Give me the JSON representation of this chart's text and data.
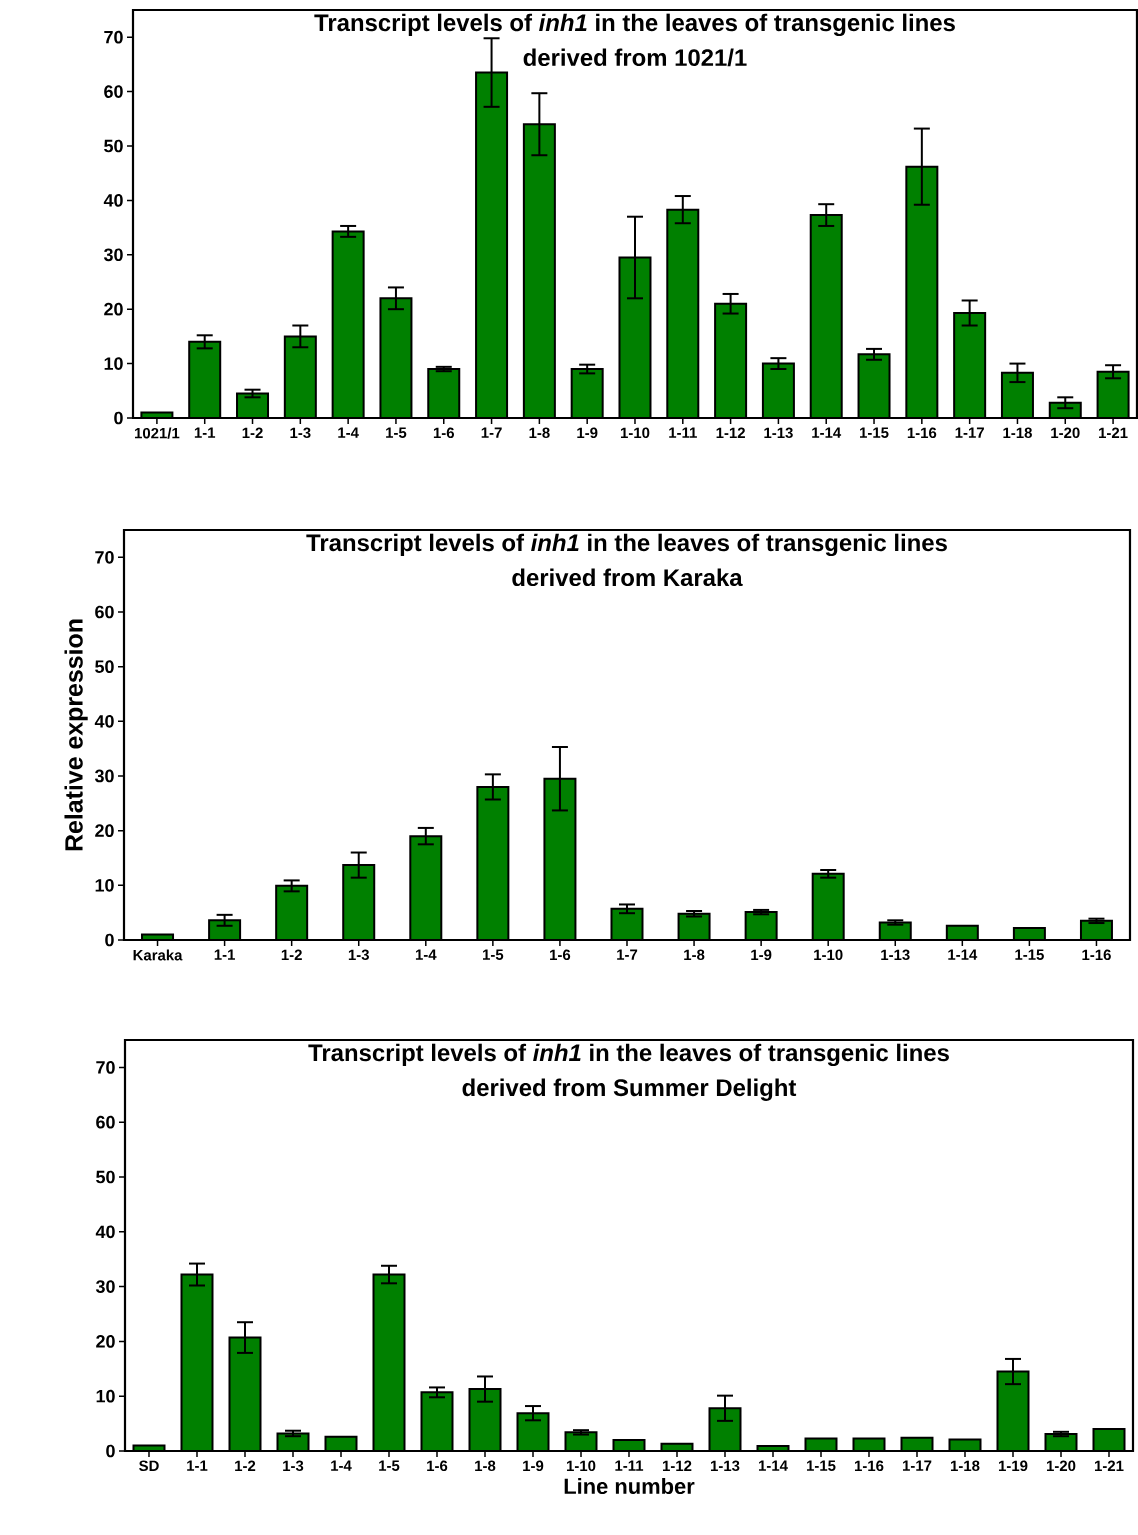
{
  "chart_data": [
    {
      "type": "bar",
      "title": "Transcript levels of *inh1* in the leaves of transgenic lines",
      "subtitle": "derived from 1021/1",
      "categories": [
        "1021/1",
        "1-1",
        "1-2",
        "1-3",
        "1-4",
        "1-5",
        "1-6",
        "1-7",
        "1-8",
        "1-9",
        "1-10",
        "1-11",
        "1-12",
        "1-13",
        "1-14",
        "1-15",
        "1-16",
        "1-17",
        "1-18",
        "1-20",
        "1-21"
      ],
      "values": [
        1,
        14,
        4.5,
        15,
        34.3,
        22,
        9,
        63.5,
        54,
        9,
        29.5,
        38.3,
        21,
        10,
        37.3,
        11.7,
        46.2,
        19.3,
        8.3,
        2.8,
        8.5
      ],
      "errors": [
        null,
        1.2,
        0.7,
        2,
        1,
        2,
        0.4,
        6.3,
        5.7,
        0.8,
        7.5,
        2.5,
        1.8,
        1,
        2,
        1,
        7,
        2.3,
        1.7,
        1,
        1.2
      ],
      "color": "#008000",
      "ylim": [
        0,
        75
      ],
      "yticks": [
        0,
        10,
        20,
        30,
        40,
        50,
        60,
        70
      ]
    },
    {
      "type": "bar",
      "title": "Transcript levels of *inh1* in the leaves of transgenic lines",
      "subtitle": "derived from Karaka",
      "ylabel": "Relative expression",
      "categories": [
        "Karaka",
        "1-1",
        "1-2",
        "1-3",
        "1-4",
        "1-5",
        "1-6",
        "1-7",
        "1-8",
        "1-9",
        "1-10",
        "1-13",
        "1-14",
        "1-15",
        "1-16"
      ],
      "values": [
        1,
        3.6,
        9.9,
        13.7,
        19,
        28,
        29.5,
        5.7,
        4.8,
        5.1,
        12.1,
        3.2,
        2.6,
        2.2,
        3.5
      ],
      "errors": [
        null,
        1,
        1,
        2.3,
        1.5,
        2.3,
        5.8,
        0.8,
        0.5,
        0.4,
        0.7,
        0.4,
        null,
        null,
        0.4
      ],
      "color": "#008000",
      "ylim": [
        0,
        75
      ],
      "yticks": [
        0,
        10,
        20,
        30,
        40,
        50,
        60,
        70
      ]
    },
    {
      "type": "bar",
      "title": "Transcript levels of *inh1* in the leaves of transgenic lines",
      "subtitle": "derived from Summer Delight",
      "xlabel": "Line number",
      "categories": [
        "SD",
        "1-1",
        "1-2",
        "1-3",
        "1-4",
        "1-5",
        "1-6",
        "1-8",
        "1-9",
        "1-10",
        "1-11",
        "1-12",
        "1-13",
        "1-14",
        "1-15",
        "1-16",
        "1-17",
        "1-18",
        "1-19",
        "1-20",
        "1-21"
      ],
      "values": [
        1,
        32.2,
        20.7,
        3.2,
        2.6,
        32.2,
        10.7,
        11.3,
        6.9,
        3.4,
        2,
        1.3,
        7.8,
        0.9,
        2.3,
        2.3,
        2.4,
        2.1,
        14.5,
        3.1,
        4
      ],
      "errors": [
        null,
        2,
        2.8,
        0.5,
        null,
        1.6,
        0.9,
        2.3,
        1.3,
        0.4,
        null,
        null,
        2.3,
        null,
        null,
        null,
        null,
        null,
        2.3,
        0.4,
        null
      ],
      "color": "#008000",
      "ylim": [
        0,
        75
      ],
      "yticks": [
        0,
        10,
        20,
        30,
        40,
        50,
        60,
        70
      ]
    }
  ]
}
